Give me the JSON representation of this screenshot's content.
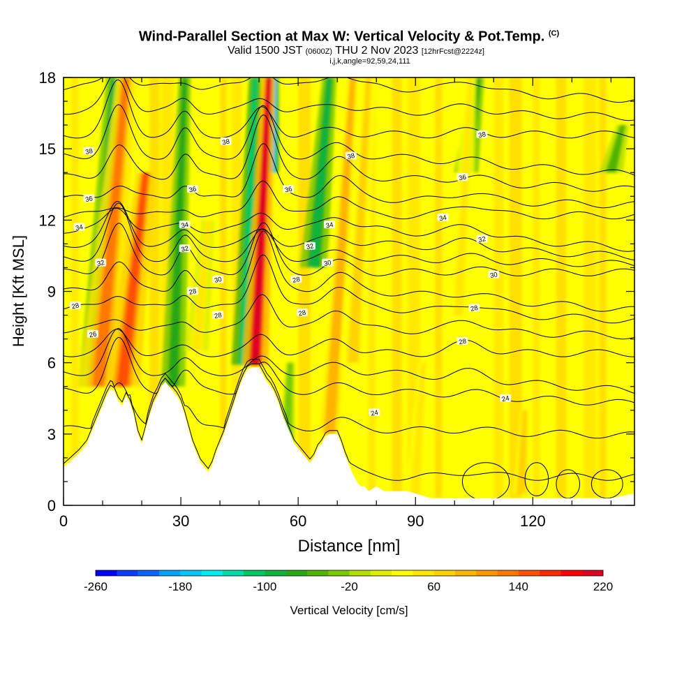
{
  "header": {
    "title": "Wind-Parallel Section at Max W: Vertical Velocity & Pot.Temp.",
    "copyright": "(C)",
    "valid_prefix": "Valid 1500 JST",
    "valid_utc": "(0600Z)",
    "valid_date": "THU 2 Nov 2023",
    "forecast": "[12hrFcst@2224z]",
    "indices": "i,j,k,angle=92,59,24,111"
  },
  "chart_data": {
    "type": "heatmap",
    "xlabel": "Distance [nm]",
    "ylabel": "Height [Kft MSL]",
    "xlim": [
      0,
      146
    ],
    "ylim": [
      0,
      18
    ],
    "x_ticks": [
      0,
      30,
      60,
      90,
      120
    ],
    "y_ticks": [
      0,
      3,
      6,
      9,
      12,
      15,
      18
    ],
    "colorbar": {
      "label": "Vertical Velocity [cm/s]",
      "min": -260,
      "max": 220,
      "step": 20,
      "tick_labels": [
        -260,
        -180,
        -100,
        -20,
        60,
        140,
        220
      ],
      "colors": [
        "#0000ff",
        "#0a3cff",
        "#0a64ff",
        "#00a0ff",
        "#00c8ff",
        "#00eeee",
        "#00dcaa",
        "#00c864",
        "#10b43c",
        "#28a814",
        "#50b400",
        "#78c800",
        "#b4e000",
        "#ddee00",
        "#ffff00",
        "#ffe800",
        "#ffd200",
        "#ffb400",
        "#ff9600",
        "#ff7800",
        "#ff5000",
        "#ff2800",
        "#ff0000",
        "#e00020",
        "#c00040",
        "#a00060",
        "#800080",
        "#600090"
      ]
    },
    "terrain_profile": {
      "x": [
        0,
        2,
        4,
        6,
        7,
        8,
        9,
        10,
        11,
        12,
        13,
        14,
        15,
        16,
        17,
        18,
        19,
        20,
        21,
        22,
        23,
        24,
        25,
        26,
        27,
        28,
        29,
        30,
        31,
        32,
        33,
        34,
        35,
        36,
        37,
        38,
        39,
        40,
        41,
        42,
        43,
        44,
        45,
        46,
        47,
        48,
        49,
        50,
        51,
        52,
        53,
        54,
        55,
        56,
        57,
        58,
        59,
        60,
        61,
        62,
        63,
        64,
        65,
        66,
        67,
        68,
        69,
        70,
        71,
        72,
        73,
        74,
        75,
        76,
        77,
        78,
        79,
        80,
        82,
        84,
        86,
        88,
        90,
        92,
        94,
        96,
        98,
        100,
        105,
        110,
        115,
        120,
        125,
        130,
        135,
        140,
        143,
        146
      ],
      "y": [
        1.6,
        1.9,
        2.2,
        2.6,
        3.0,
        3.4,
        3.8,
        4.2,
        4.6,
        4.9,
        4.8,
        4.4,
        4.2,
        4.6,
        4.3,
        3.8,
        3.0,
        2.6,
        3.2,
        3.8,
        4.3,
        4.6,
        5.0,
        5.2,
        5.0,
        4.8,
        4.6,
        4.3,
        3.8,
        3.2,
        2.6,
        2.2,
        1.8,
        1.6,
        1.4,
        1.7,
        2.2,
        2.6,
        3.0,
        3.5,
        4.0,
        4.5,
        5.0,
        5.4,
        5.7,
        5.8,
        5.8,
        5.8,
        5.5,
        5.2,
        5.0,
        4.7,
        4.3,
        3.8,
        3.4,
        3.0,
        2.6,
        2.4,
        2.2,
        2.0,
        1.8,
        2.0,
        2.4,
        2.6,
        2.9,
        3.0,
        3.0,
        3.0,
        2.6,
        2.1,
        1.7,
        1.3,
        1.0,
        0.8,
        0.8,
        0.6,
        0.7,
        0.8,
        0.6,
        0.6,
        0.6,
        0.6,
        0.5,
        0.4,
        0.3,
        0.3,
        0.3,
        0.3,
        0.3,
        0.3,
        0.3,
        0.3,
        0.3,
        0.3,
        0.3,
        0.3,
        0.4,
        0.5
      ]
    },
    "updraft_bands": [
      {
        "x0": 9,
        "y0": 5.0,
        "x1": 16,
        "y1": 18,
        "w": 130
      },
      {
        "x0": 15,
        "y0": 5.0,
        "x1": 21,
        "y1": 14,
        "w": 150
      },
      {
        "x0": 49,
        "y0": 5.9,
        "x1": 52.5,
        "y1": 18,
        "w": 200
      },
      {
        "x0": 34,
        "y0": 6.5,
        "x1": 37,
        "y1": 12,
        "w": 40
      },
      {
        "x0": 68,
        "y0": 3.0,
        "x1": 74,
        "y1": 18,
        "w": 80
      },
      {
        "x0": 74,
        "y0": 6.0,
        "x1": 78,
        "y1": 18,
        "w": 60
      },
      {
        "x0": 90,
        "y0": 0.5,
        "x1": 92,
        "y1": 6,
        "w": 50
      },
      {
        "x0": 101,
        "y0": 8.0,
        "x1": 104,
        "y1": 18,
        "w": 50
      },
      {
        "x0": 117,
        "y0": 0.5,
        "x1": 118,
        "y1": 4,
        "w": 60
      }
    ],
    "downdraft_bands": [
      {
        "x0": 8,
        "y0": 5.0,
        "x1": 13,
        "y1": 18,
        "w": -100
      },
      {
        "x0": 28,
        "y0": 5.0,
        "x1": 31,
        "y1": 18,
        "w": -80
      },
      {
        "x0": 46,
        "y0": 5.9,
        "x1": 49,
        "y1": 18,
        "w": -110
      },
      {
        "x0": 53,
        "y0": 14.0,
        "x1": 54,
        "y1": 18,
        "w": -180
      },
      {
        "x0": 64,
        "y0": 10.0,
        "x1": 68,
        "y1": 18,
        "w": -90
      },
      {
        "x0": 103,
        "y0": 14.0,
        "x1": 106,
        "y1": 18,
        "w": -70
      },
      {
        "x0": 57,
        "y0": 2.2,
        "x1": 58,
        "y1": 6,
        "w": -40
      },
      {
        "x0": 140,
        "y0": 14,
        "x1": 143,
        "y1": 16,
        "w": -50
      }
    ],
    "isentropes": {
      "levels": [
        22,
        23,
        24,
        25,
        26,
        27,
        28,
        29,
        30,
        31,
        32,
        33,
        34,
        35,
        36,
        37,
        38,
        39,
        40
      ],
      "base_heights": [
        1.2,
        3.2,
        4.8,
        5.6,
        6.4,
        7.4,
        8.3,
        9.0,
        9.8,
        10.4,
        11.0,
        11.6,
        12.2,
        12.9,
        13.8,
        14.7,
        15.6,
        16.6,
        17.6
      ],
      "labels": [
        {
          "level": 26,
          "x": 7.5,
          "y": 7.2,
          "text": "26"
        },
        {
          "level": 28,
          "x": 3,
          "y": 8.4,
          "text": "28"
        },
        {
          "level": 32,
          "x": 9.5,
          "y": 10.2,
          "text": "32"
        },
        {
          "level": 34,
          "x": 4,
          "y": 11.7,
          "text": "34"
        },
        {
          "level": 36,
          "x": 6.5,
          "y": 12.9,
          "text": "36"
        },
        {
          "level": 38,
          "x": 6.5,
          "y": 14.9,
          "text": "38"
        },
        {
          "level": 36,
          "x": 33,
          "y": 13.3,
          "text": "36"
        },
        {
          "level": 34,
          "x": 31,
          "y": 11.8,
          "text": "34"
        },
        {
          "level": 32,
          "x": 31,
          "y": 10.8,
          "text": "32"
        },
        {
          "level": 28,
          "x": 33,
          "y": 9.0,
          "text": "28"
        },
        {
          "level": 30,
          "x": 39.5,
          "y": 9.5,
          "text": "30"
        },
        {
          "level": 28,
          "x": 39.5,
          "y": 8.0,
          "text": "28"
        },
        {
          "level": 38,
          "x": 41.5,
          "y": 15.3,
          "text": "38"
        },
        {
          "level": 36,
          "x": 57.5,
          "y": 13.3,
          "text": "36"
        },
        {
          "level": 32,
          "x": 63,
          "y": 10.9,
          "text": "32"
        },
        {
          "level": 34,
          "x": 68,
          "y": 11.8,
          "text": "34"
        },
        {
          "level": 30,
          "x": 67.5,
          "y": 10.2,
          "text": "30"
        },
        {
          "level": 28,
          "x": 59.5,
          "y": 9.5,
          "text": "28"
        },
        {
          "level": 28,
          "x": 61,
          "y": 8.1,
          "text": "28"
        },
        {
          "level": 38,
          "x": 73.5,
          "y": 14.7,
          "text": "38"
        },
        {
          "level": 24,
          "x": 79.5,
          "y": 3.9,
          "text": "24"
        },
        {
          "level": 36,
          "x": 102,
          "y": 13.8,
          "text": "36"
        },
        {
          "level": 34,
          "x": 97,
          "y": 12.1,
          "text": "34"
        },
        {
          "level": 38,
          "x": 107,
          "y": 15.6,
          "text": "38"
        },
        {
          "level": 32,
          "x": 107,
          "y": 11.2,
          "text": "32"
        },
        {
          "level": 30,
          "x": 110,
          "y": 9.7,
          "text": "30"
        },
        {
          "level": 28,
          "x": 105,
          "y": 8.3,
          "text": "28"
        },
        {
          "level": 28,
          "x": 102,
          "y": 6.9,
          "text": "28"
        },
        {
          "level": 24,
          "x": 113,
          "y": 4.5,
          "text": "24"
        }
      ]
    }
  }
}
